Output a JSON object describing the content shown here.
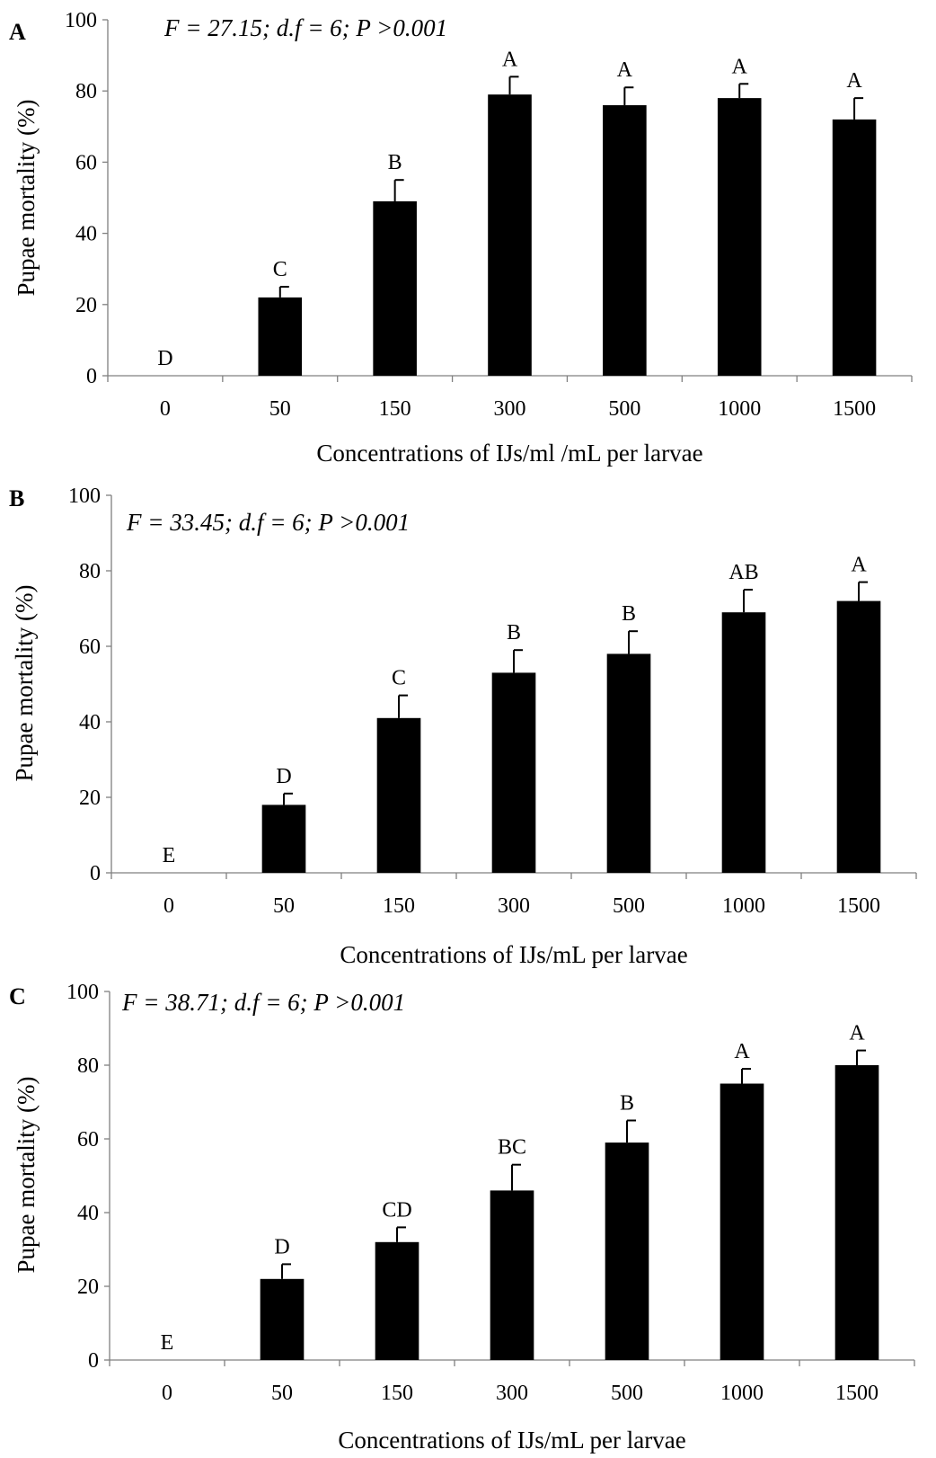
{
  "chart_data": [
    {
      "type": "bar",
      "panel_label": "A",
      "stats": "F = 27.15; d.f = 6; P >0.001",
      "ylabel": "Pupae mortality (%)",
      "xlabel": "Concentrations of IJs/ml /mL per larvae",
      "ylim": [
        0,
        100
      ],
      "yticks": [
        "0",
        "20",
        "40",
        "60",
        "80",
        "100"
      ],
      "categories": [
        "0",
        "50",
        "150",
        "300",
        "500",
        "1000",
        "1500"
      ],
      "values": [
        0,
        22,
        49,
        79,
        76,
        78,
        72
      ],
      "errors": [
        0,
        3,
        6,
        5,
        5,
        4,
        6
      ],
      "letters": [
        "D",
        "C",
        "B",
        "A",
        "A",
        "A",
        "A"
      ]
    },
    {
      "type": "bar",
      "panel_label": "B",
      "stats": "F = 33.45; d.f = 6; P >0.001",
      "ylabel": "Pupae mortality (%)",
      "xlabel": "Concentrations of IJs/mL per larvae",
      "ylim": [
        0,
        100
      ],
      "yticks": [
        "0",
        "20",
        "40",
        "60",
        "80",
        "100"
      ],
      "categories": [
        "0",
        "50",
        "150",
        "300",
        "500",
        "1000",
        "1500"
      ],
      "values": [
        0,
        18,
        41,
        53,
        58,
        69,
        72
      ],
      "errors": [
        0,
        3,
        6,
        6,
        6,
        6,
        5
      ],
      "letters": [
        "E",
        "D",
        "C",
        "B",
        "B",
        "AB",
        "A"
      ]
    },
    {
      "type": "bar",
      "panel_label": "C",
      "stats": "F = 38.71; d.f = 6; P >0.001",
      "ylabel": "Pupae mortality (%)",
      "xlabel": "Concentrations of IJs/mL per larvae",
      "ylim": [
        0,
        100
      ],
      "yticks": [
        "0",
        "20",
        "40",
        "60",
        "80",
        "100"
      ],
      "categories": [
        "0",
        "50",
        "150",
        "300",
        "500",
        "1000",
        "1500"
      ],
      "values": [
        0,
        22,
        32,
        46,
        59,
        75,
        80
      ],
      "errors": [
        0,
        4,
        4,
        7,
        6,
        4,
        4
      ],
      "letters": [
        "E",
        "D",
        "CD",
        "BC",
        "B",
        "A",
        "A"
      ]
    }
  ]
}
